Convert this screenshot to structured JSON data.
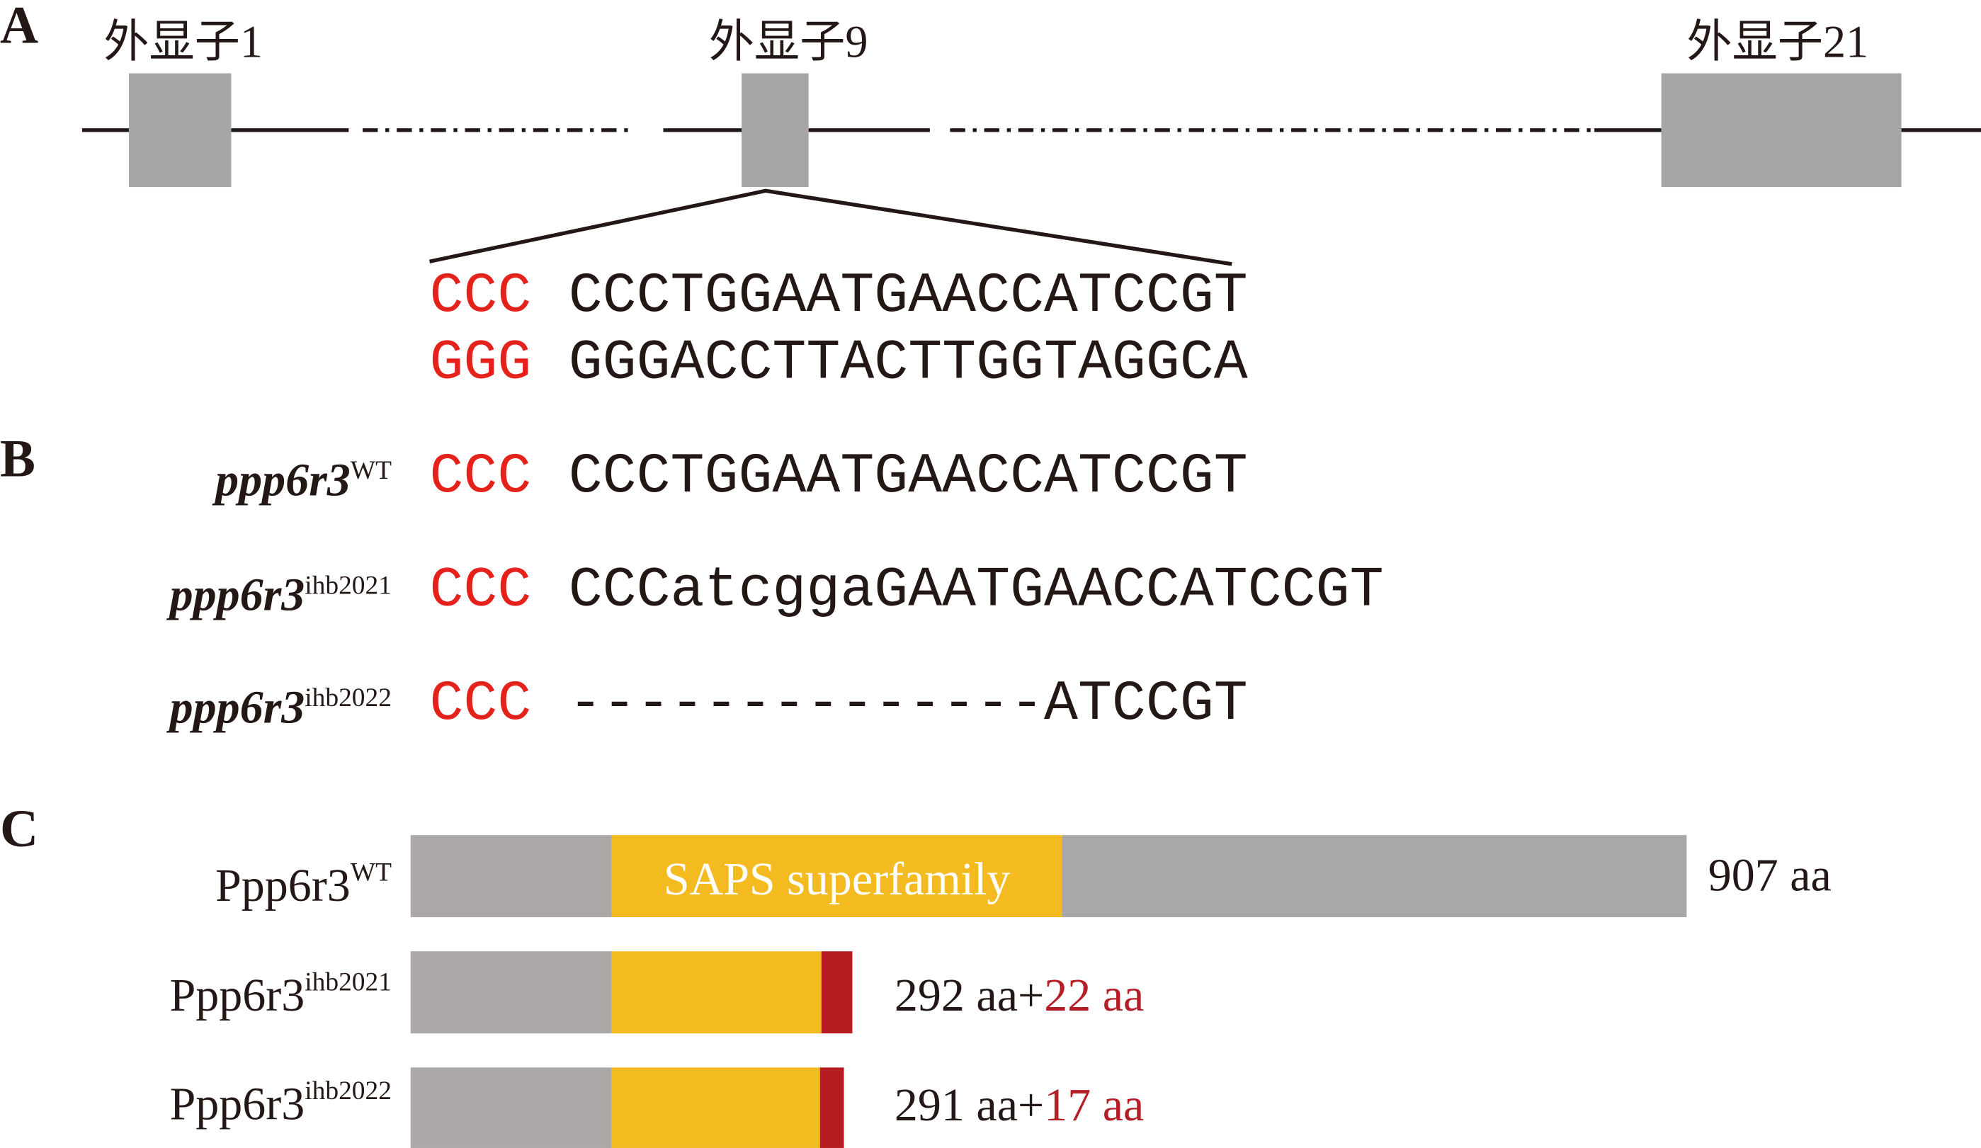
{
  "panels": {
    "A": {
      "label": "A",
      "exons": [
        {
          "label": "外显子1"
        },
        {
          "label": "外显子9"
        },
        {
          "label": "外显子21"
        }
      ],
      "sense": {
        "pam": "CCC",
        "target": "CCCTGGAATGAACCATCCGT"
      },
      "antisense": {
        "pam": "GGG",
        "target": "GGGACCTTACTTGGTAGGCA"
      }
    },
    "B": {
      "label": "B",
      "rows": [
        {
          "gene": "ppp6r3",
          "allele": "WT",
          "pam": "CCC",
          "sequence": "CCCTGGAATGAACCATCCGT"
        },
        {
          "gene": "ppp6r3",
          "allele": "ihb2021",
          "pam": "CCC",
          "sequence": "CCCatcggaGAATGAACCATCCGT"
        },
        {
          "gene": "ppp6r3",
          "allele": "ihb2022",
          "pam": "CCC",
          "sequence": "--------------ATCCGT"
        }
      ]
    },
    "C": {
      "label": "C",
      "rows": [
        {
          "protein": "Ppp6r3",
          "allele": "WT",
          "domain_label": "SAPS superfamily",
          "domain_aa": [
            143,
            463
          ],
          "length_aa": 907,
          "length_label": "907 aa"
        },
        {
          "protein": "Ppp6r3",
          "allele": "ihb2021",
          "length_aa": 292,
          "extra_aa": 22,
          "length_label": "292 aa+",
          "extra_label": "22 aa"
        },
        {
          "protein": "Ppp6r3",
          "allele": "ihb2022",
          "length_aa": 291,
          "extra_aa": 17,
          "length_label": "291 aa+",
          "extra_label": "17 aa"
        }
      ]
    }
  },
  "colors": {
    "exon": "#a6a6a6",
    "pam": "#e5211b",
    "n_terminal": "#aca8a8",
    "domain": "#f4bb20",
    "c_terminal": "#a8a8a8",
    "frameshift": "#b71c22",
    "frameshift_text": "#b41f27"
  }
}
